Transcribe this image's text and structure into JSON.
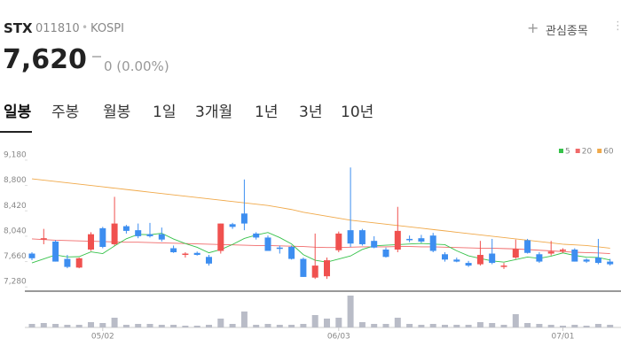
{
  "header": {
    "name": "STX",
    "code": "011810",
    "market": "KOSPI",
    "watch": "관심종목",
    "price": "7,620",
    "change": "0 (0.00%)"
  },
  "tabs": [
    "일봉",
    "주봉",
    "월봉",
    "1일",
    "3개월",
    "1년",
    "3년",
    "10년"
  ],
  "chart_data": {
    "type": "candlestick",
    "categories": [
      null,
      null,
      null,
      null,
      null,
      null,
      "05/02",
      null,
      null,
      null,
      null,
      null,
      null,
      null,
      null,
      null,
      null,
      null,
      null,
      null,
      null,
      null,
      null,
      null,
      null,
      null,
      "06/03",
      null,
      null,
      null,
      null,
      null,
      null,
      null,
      null,
      null,
      null,
      null,
      null,
      null,
      null,
      null,
      null,
      null,
      null,
      "07/01",
      null,
      null,
      null,
      null
    ],
    "open": [
      7780,
      7990,
      7960,
      7700,
      7570,
      7840,
      8160,
      7920,
      8190,
      8130,
      8070,
      8070,
      7860,
      7760,
      7790,
      7730,
      7820,
      8220,
      8380,
      8080,
      8020,
      7870,
      7880,
      7700,
      7420,
      7440,
      7830,
      8130,
      8130,
      7970,
      7840,
      7840,
      8000,
      8010,
      8050,
      7770,
      7690,
      7640,
      7620,
      7780,
      7580,
      7720,
      7980,
      7770,
      7780,
      7820,
      7840,
      7690,
      7720,
      7660
    ],
    "high": [
      7800,
      8150,
      7980,
      7760,
      7720,
      8100,
      8180,
      8630,
      8210,
      8230,
      8240,
      8170,
      7900,
      7800,
      7810,
      7760,
      8230,
      8240,
      8890,
      8100,
      8050,
      7900,
      7900,
      7720,
      8080,
      7720,
      8110,
      9070,
      8150,
      8040,
      7870,
      8480,
      8050,
      8060,
      8090,
      7800,
      7720,
      7670,
      7970,
      8000,
      7640,
      7990,
      8000,
      7800,
      7970,
      7860,
      7860,
      7710,
      8000,
      7700
    ],
    "low": [
      7680,
      7920,
      7660,
      7560,
      7560,
      7820,
      7860,
      7900,
      8080,
      8010,
      8020,
      7960,
      7790,
      7720,
      7750,
      7600,
      7780,
      8150,
      8130,
      7990,
      7820,
      7780,
      7690,
      7430,
      7400,
      7400,
      7800,
      7880,
      7900,
      7860,
      7720,
      7800,
      7950,
      7940,
      7800,
      7660,
      7650,
      7580,
      7600,
      7620,
      7550,
      7700,
      7780,
      7640,
      7750,
      7790,
      7660,
      7640,
      7620,
      7600
    ],
    "close": [
      7710,
      8010,
      7660,
      7580,
      7710,
      8070,
      7880,
      8230,
      8120,
      8040,
      8040,
      7990,
      7800,
      7780,
      7760,
      7630,
      8230,
      8180,
      8230,
      8020,
      7820,
      7850,
      7700,
      7430,
      7600,
      7680,
      8080,
      7930,
      7920,
      7870,
      7730,
      8120,
      7980,
      7960,
      7820,
      7690,
      7660,
      7600,
      7760,
      7640,
      7600,
      7850,
      7790,
      7660,
      7810,
      7840,
      7660,
      7660,
      7640,
      7620
    ],
    "volume": [
      4,
      5,
      4,
      3,
      3,
      6,
      5,
      11,
      3,
      4,
      4,
      3,
      3,
      2,
      2,
      3,
      10,
      4,
      18,
      3,
      4,
      3,
      3,
      4,
      14,
      10,
      11,
      36,
      6,
      4,
      4,
      11,
      4,
      3,
      4,
      3,
      3,
      3,
      6,
      5,
      3,
      15,
      5,
      4,
      3,
      2,
      3,
      2,
      4,
      3
    ],
    "up_color": "#f0514f",
    "down_color": "#3d8ef0",
    "series": [
      {
        "name": "5",
        "color": "#36c24a",
        "values": [
          7640,
          7700,
          7760,
          7730,
          7734,
          7806,
          7780,
          7894,
          8002,
          8068,
          8062,
          8084,
          7998,
          7930,
          7874,
          7792,
          7840,
          7916,
          8006,
          8058,
          8096,
          8020,
          7924,
          7764,
          7680,
          7652,
          7698,
          7744,
          7842,
          7896,
          7906,
          7914,
          7924,
          7932,
          7922,
          7914,
          7822,
          7746,
          7706,
          7670,
          7652,
          7690,
          7728,
          7708,
          7742,
          7790,
          7752,
          7726,
          7722,
          7684
        ]
      },
      {
        "name": "20",
        "color": "#f06a6a",
        "values": [
          8000,
          7990,
          7980,
          7975,
          7970,
          7965,
          7960,
          7955,
          7950,
          7950,
          7945,
          7940,
          7935,
          7930,
          7925,
          7920,
          7915,
          7910,
          7905,
          7900,
          7900,
          7895,
          7890,
          7885,
          7875,
          7870,
          7870,
          7875,
          7880,
          7880,
          7880,
          7885,
          7885,
          7880,
          7880,
          7875,
          7870,
          7865,
          7860,
          7860,
          7855,
          7850,
          7840,
          7830,
          7820,
          7810,
          7800,
          7795,
          7790,
          7780
        ]
      },
      {
        "name": "60",
        "color": "#f0a94a",
        "values": [
          8900,
          8880,
          8860,
          8840,
          8820,
          8800,
          8780,
          8760,
          8740,
          8720,
          8700,
          8680,
          8660,
          8640,
          8620,
          8600,
          8580,
          8560,
          8540,
          8520,
          8500,
          8470,
          8440,
          8400,
          8370,
          8340,
          8310,
          8280,
          8260,
          8240,
          8220,
          8200,
          8180,
          8160,
          8140,
          8120,
          8100,
          8080,
          8060,
          8040,
          8020,
          8000,
          7980,
          7960,
          7940,
          7920,
          7910,
          7900,
          7880,
          7860
        ]
      }
    ],
    "ylim": [
      7230,
      9325
    ],
    "yticks": [
      {
        "value": 7280,
        "label": "7,280"
      },
      {
        "value": 7660,
        "label": "7,660"
      },
      {
        "value": 8040,
        "label": "8,040"
      },
      {
        "value": 8420,
        "label": "8,420"
      },
      {
        "value": 8800,
        "label": "8,800"
      },
      {
        "value": 9180,
        "label": "9,180"
      }
    ]
  }
}
